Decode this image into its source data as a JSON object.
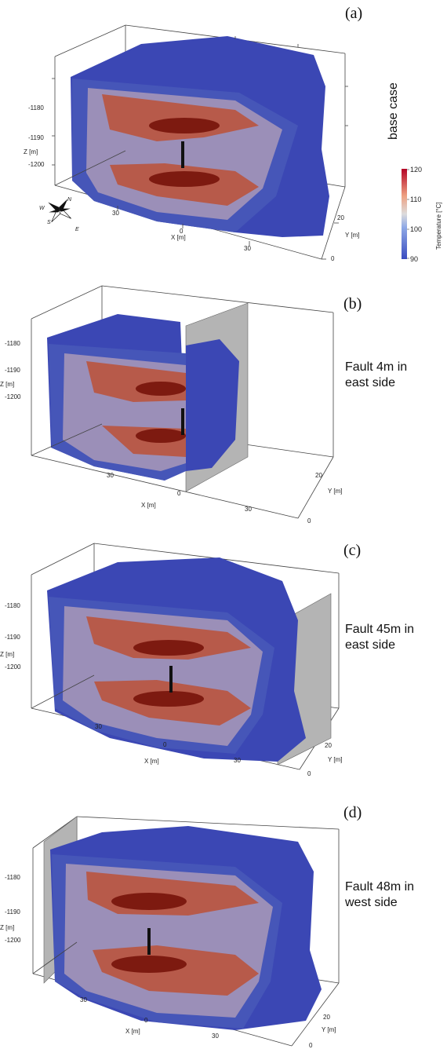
{
  "panels": [
    {
      "letter": "(a)",
      "desc": [
        "base case"
      ],
      "fault": "none",
      "axes": {
        "z_ticks": [
          "-1180",
          "-1190",
          "-1200"
        ],
        "z_label": "Z [m]",
        "x_ticks": [
          "30",
          "0",
          "30"
        ],
        "x_label": "X [m]",
        "y_ticks": [
          "20",
          "0"
        ],
        "y_label": "Y [m]"
      }
    },
    {
      "letter": "(b)",
      "desc": [
        "Fault 4m in",
        "east side"
      ],
      "fault": "east-near",
      "axes": {
        "z_ticks": [
          "-1180",
          "-1190",
          "-1200"
        ],
        "z_label": "Z [m]",
        "x_ticks": [
          "30",
          "0",
          "30"
        ],
        "x_label": "X [m]",
        "y_ticks": [
          "20",
          "0"
        ],
        "y_label": "Y [m]"
      }
    },
    {
      "letter": "(c)",
      "desc": [
        "Fault 45m in",
        "east side"
      ],
      "fault": "east-far",
      "axes": {
        "z_ticks": [
          "-1180",
          "-1190",
          "-1200"
        ],
        "z_label": "Z [m]",
        "x_ticks": [
          "30",
          "0",
          "30"
        ],
        "x_label": "X [m]",
        "y_ticks": [
          "20",
          "0"
        ],
        "y_label": "Y [m]"
      }
    },
    {
      "letter": "(d)",
      "desc": [
        "Fault 48m in",
        "west side"
      ],
      "fault": "west",
      "axes": {
        "z_ticks": [
          "-1180",
          "-1190",
          "-1200"
        ],
        "z_label": "Z [m]",
        "x_ticks": [
          "30",
          "0",
          "30"
        ],
        "x_label": "X [m]",
        "y_ticks": [
          "20",
          "0"
        ],
        "y_label": "Y [m]"
      }
    }
  ],
  "colorbar": {
    "title": "Temperature [°C]",
    "ticks": [
      "120",
      "110",
      "100",
      "90"
    ],
    "min": 90,
    "max": 120,
    "color_low": "#3a4cc0",
    "color_high": "#b40426"
  },
  "compass": {
    "n": "N",
    "s": "S",
    "e": "E",
    "w": "W"
  },
  "colors": {
    "outer": "#3b47b4",
    "hot": "#8f1a12",
    "fault_plane": "#b4b4b4"
  }
}
